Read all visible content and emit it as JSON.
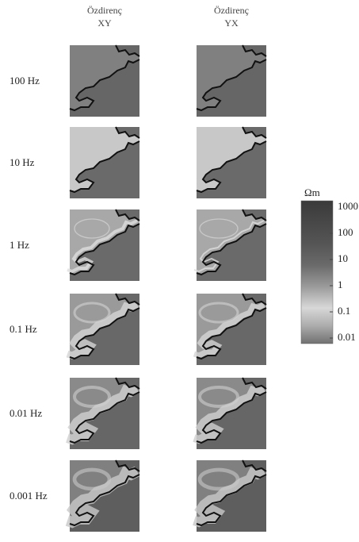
{
  "headers": [
    {
      "title": "Özdirenç",
      "component": "XY"
    },
    {
      "title": "Özdirenç",
      "component": "YX"
    }
  ],
  "rows": [
    "100 Hz",
    "10 Hz",
    "1 Hz",
    "0.1 Hz",
    "0.01 Hz",
    "0.001 Hz"
  ],
  "colorbar": {
    "unit": "Ωm",
    "scale": "log",
    "ticks": [
      1000,
      100,
      10,
      1,
      0.1,
      0.01
    ]
  }
}
